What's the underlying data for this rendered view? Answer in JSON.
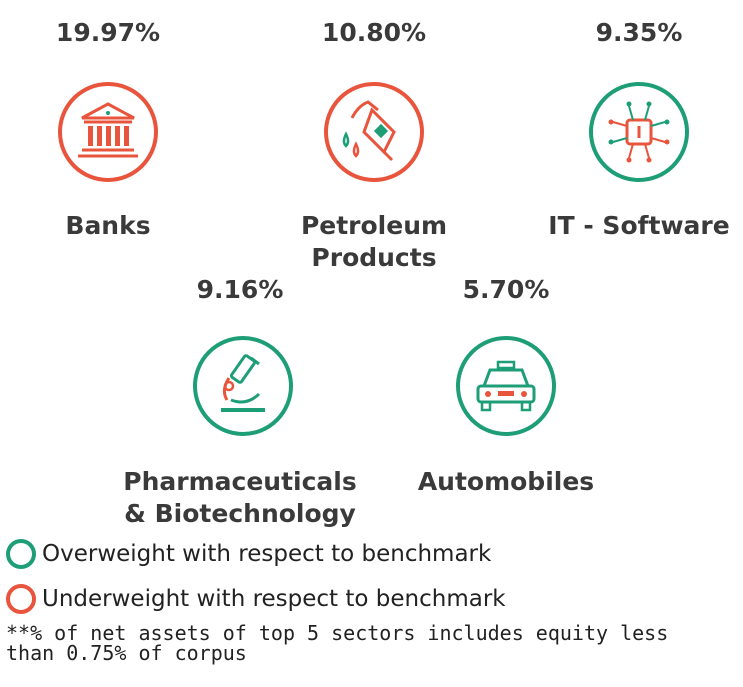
{
  "colors": {
    "overweight": "#1e9e76",
    "underweight": "#e8543c",
    "text": "#3a3a3a"
  },
  "sectors": [
    {
      "percent": "19.97%",
      "label": "Banks",
      "weight": "underweight",
      "icon": "bank-icon"
    },
    {
      "percent": "10.80%",
      "label": "Petroleum\nProducts",
      "weight": "underweight",
      "icon": "fuel-nozzle-icon"
    },
    {
      "percent": "9.35%",
      "label": "IT - Software",
      "weight": "overweight",
      "icon": "chip-circuit-icon"
    },
    {
      "percent": "9.16%",
      "label": "Pharmaceuticals\n& Biotechnology",
      "weight": "overweight",
      "icon": "microscope-icon"
    },
    {
      "percent": "5.70%",
      "label": "Automobiles",
      "weight": "overweight",
      "icon": "car-icon"
    }
  ],
  "legend": {
    "overweight": "Overweight with respect to benchmark",
    "underweight": "Underweight with respect to benchmark"
  },
  "footnote": "**% of net assets of top 5 sectors includes equity less than 0.75% of corpus"
}
